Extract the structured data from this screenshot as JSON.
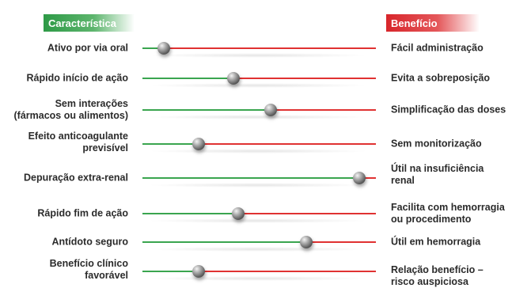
{
  "headers": {
    "left": "Característica",
    "right": "Benefício"
  },
  "colors": {
    "green": "#3aa54f",
    "red": "#e03232"
  },
  "rows": [
    {
      "characteristic": "Ativo por via oral",
      "benefit": "Fácil administração",
      "position": 0.09
    },
    {
      "characteristic": "Rápido início de ação",
      "benefit": "Evita a sobreposição",
      "position": 0.39
    },
    {
      "characteristic": "Sem interações (fármacos ou alimentos)",
      "benefit": "Simplificação das doses",
      "position": 0.55
    },
    {
      "characteristic": "Efeito anticoagulante previsível",
      "benefit": "Sem monitorização",
      "position": 0.24
    },
    {
      "characteristic": "Depuração extra-renal",
      "benefit": "Útil na insuficiência renal",
      "position": 0.93
    },
    {
      "characteristic": "Rápido fim de ação",
      "benefit": "Facilita com hemorragia ou procedimento",
      "position": 0.41
    },
    {
      "characteristic": "Antídoto seguro",
      "benefit": "Útil em hemorragia",
      "position": 0.7
    },
    {
      "characteristic": "Benefício clínico favorável",
      "benefit": "Relação benefício – risco auspiciosa",
      "position": 0.24
    }
  ]
}
